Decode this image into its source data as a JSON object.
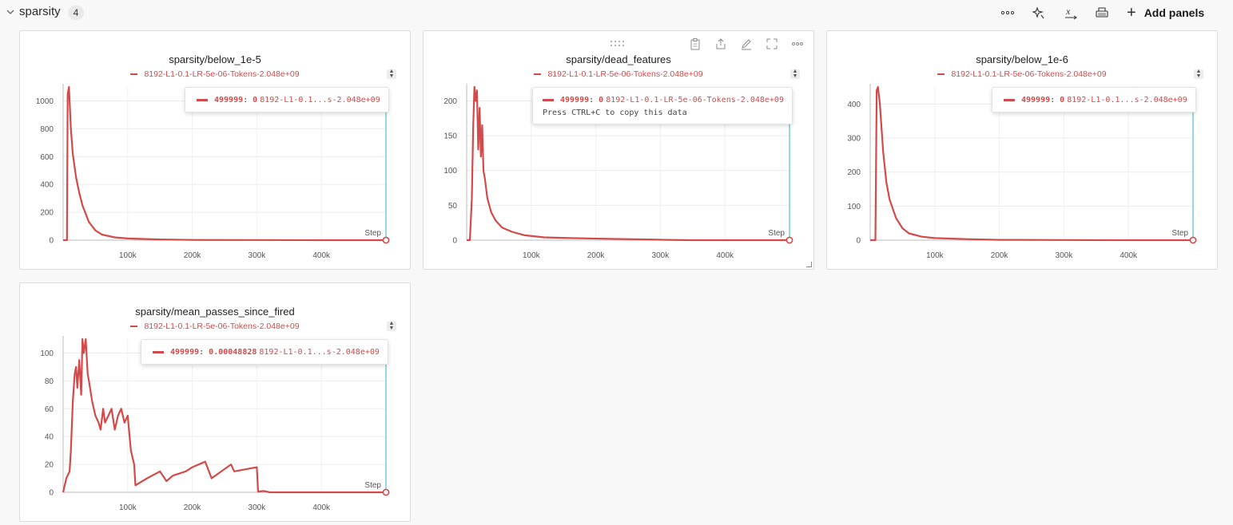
{
  "section": {
    "title": "sparsity",
    "count": "4"
  },
  "toolbar": {
    "icons": [
      "more-icon",
      "magic-wand-icon",
      "variable-x-icon",
      "print-icon"
    ],
    "add_panels_label": "Add panels"
  },
  "colors": {
    "series": "#d24a4a",
    "cursor": "#29b6c4"
  },
  "panels": [
    {
      "title": "sparsity/below_1e-5",
      "legend": "8192-L1-0.1-LR-5e-06-Tokens-2.048e+09",
      "tooltip": {
        "step": "499999",
        "value": "0",
        "name": "8192-L1-0.1...s-2.048e+09"
      },
      "step_label": "Step",
      "xticks": [
        "100k",
        "200k",
        "300k",
        "400k"
      ],
      "yticks": [
        "0",
        "200",
        "400",
        "600",
        "800",
        "1000"
      ]
    },
    {
      "title": "sparsity/dead_features",
      "legend": "8192-L1-0.1-LR-5e-06-Tokens-2.048e+09",
      "tooltip": {
        "step": "499999",
        "value": "0",
        "name": "8192-L1-0.1-LR-5e-06-Tokens-2.048e+09",
        "hint": "Press CTRL+C to copy this data"
      },
      "step_label": "Step",
      "xticks": [
        "100k",
        "200k",
        "300k",
        "400k"
      ],
      "yticks": [
        "0",
        "50",
        "100",
        "150",
        "200"
      ]
    },
    {
      "title": "sparsity/below_1e-6",
      "legend": "8192-L1-0.1-LR-5e-06-Tokens-2.048e+09",
      "tooltip": {
        "step": "499999",
        "value": "0",
        "name": "8192-L1-0.1...s-2.048e+09"
      },
      "step_label": "Step",
      "xticks": [
        "100k",
        "200k",
        "300k",
        "400k"
      ],
      "yticks": [
        "0",
        "100",
        "200",
        "300",
        "400"
      ]
    },
    {
      "title": "sparsity/mean_passes_since_fired",
      "legend": "8192-L1-0.1-LR-5e-06-Tokens-2.048e+09",
      "tooltip": {
        "step": "499999",
        "value": "0.00048828",
        "name": "8192-L1-0.1...s-2.048e+09"
      },
      "step_label": "Step",
      "xticks": [
        "100k",
        "200k",
        "300k",
        "400k"
      ],
      "yticks": [
        "0",
        "20",
        "40",
        "60",
        "80",
        "100"
      ]
    }
  ],
  "chart_data": [
    {
      "type": "line",
      "title": "sparsity/below_1e-5",
      "xlabel": "Step",
      "ylim": [
        0,
        1100
      ],
      "xlim": [
        0,
        500000
      ],
      "series": [
        {
          "name": "8192-L1-0.1-LR-5e-06-Tokens-2.048e+09",
          "x": [
            0,
            6000,
            7000,
            9000,
            10000,
            12000,
            15000,
            20000,
            25000,
            30000,
            40000,
            50000,
            60000,
            80000,
            100000,
            150000,
            200000,
            300000,
            400000,
            499999
          ],
          "y": [
            0,
            0,
            1050,
            1100,
            1000,
            800,
            620,
            450,
            340,
            250,
            130,
            70,
            40,
            20,
            12,
            5,
            2,
            1,
            0,
            0
          ]
        }
      ]
    },
    {
      "type": "line",
      "title": "sparsity/dead_features",
      "xlabel": "Step",
      "ylim": [
        0,
        220
      ],
      "xlim": [
        0,
        500000
      ],
      "series": [
        {
          "name": "8192-L1-0.1-LR-5e-06-Tokens-2.048e+09",
          "x": [
            0,
            5000,
            8000,
            10000,
            12000,
            14000,
            16000,
            18000,
            20000,
            22000,
            24000,
            26000,
            28000,
            32000,
            38000,
            45000,
            55000,
            70000,
            90000,
            120000,
            160000,
            220000,
            280000,
            310000,
            350000,
            400000,
            499999
          ],
          "y": [
            0,
            0,
            60,
            160,
            220,
            200,
            215,
            130,
            190,
            120,
            165,
            100,
            90,
            60,
            40,
            28,
            18,
            12,
            7,
            4,
            3,
            2,
            1,
            0.5,
            0,
            0,
            0
          ]
        }
      ]
    },
    {
      "type": "line",
      "title": "sparsity/below_1e-6",
      "xlabel": "Step",
      "ylim": [
        0,
        450
      ],
      "xlim": [
        0,
        500000
      ],
      "series": [
        {
          "name": "8192-L1-0.1-LR-5e-06-Tokens-2.048e+09",
          "x": [
            0,
            8000,
            10000,
            12000,
            15000,
            20000,
            25000,
            30000,
            40000,
            50000,
            60000,
            80000,
            100000,
            150000,
            200000,
            300000,
            400000,
            499999
          ],
          "y": [
            0,
            0,
            440,
            450,
            400,
            260,
            170,
            120,
            65,
            35,
            20,
            10,
            6,
            3,
            1,
            0.5,
            0,
            0
          ]
        }
      ]
    },
    {
      "type": "line",
      "title": "sparsity/mean_passes_since_fired",
      "xlabel": "Step",
      "ylim": [
        0,
        110
      ],
      "xlim": [
        0,
        500000
      ],
      "series": [
        {
          "name": "8192-L1-0.1-LR-5e-06-Tokens-2.048e+09",
          "x": [
            0,
            5000,
            10000,
            12000,
            15000,
            18000,
            20000,
            22000,
            25000,
            28000,
            30000,
            32000,
            35000,
            38000,
            40000,
            45000,
            50000,
            55000,
            58000,
            62000,
            65000,
            70000,
            75000,
            80000,
            85000,
            90000,
            95000,
            100000,
            105000,
            110000,
            112000,
            130000,
            150000,
            160000,
            170000,
            190000,
            200000,
            220000,
            230000,
            260000,
            265000,
            300000,
            302000,
            310000,
            320000,
            400000,
            499999
          ],
          "y": [
            0,
            10,
            15,
            30,
            65,
            85,
            90,
            75,
            95,
            70,
            110,
            100,
            110,
            85,
            80,
            65,
            55,
            50,
            45,
            60,
            50,
            55,
            60,
            45,
            55,
            60,
            50,
            55,
            30,
            20,
            5,
            10,
            15,
            8,
            12,
            15,
            18,
            22,
            10,
            20,
            15,
            18,
            0.5,
            1,
            0,
            0,
            0.00048828
          ]
        }
      ]
    }
  ]
}
